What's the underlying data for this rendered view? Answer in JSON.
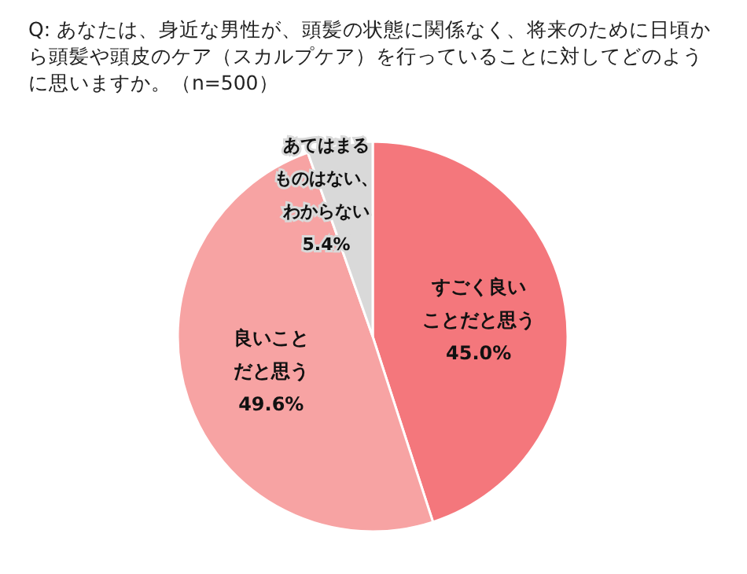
{
  "chart_data": {
    "type": "pie",
    "title": "Q: あなたは、身近な男性が、頭髪の状態に関係なく、将来のために日頃から頭髪や頭皮のケア（スカルプケア）を行っていることに対してどのように思いますか。（n=500）",
    "categories": [
      "すごく良いことだと思う",
      "良いことだと思う",
      "あてはまるものはない、わからない"
    ],
    "values": [
      45.0,
      49.6,
      5.4
    ],
    "value_labels": [
      "45.0%",
      "49.6%",
      "5.4%"
    ],
    "colors": [
      "#f4777c",
      "#f7a3a3",
      "#d9d9d9"
    ]
  }
}
